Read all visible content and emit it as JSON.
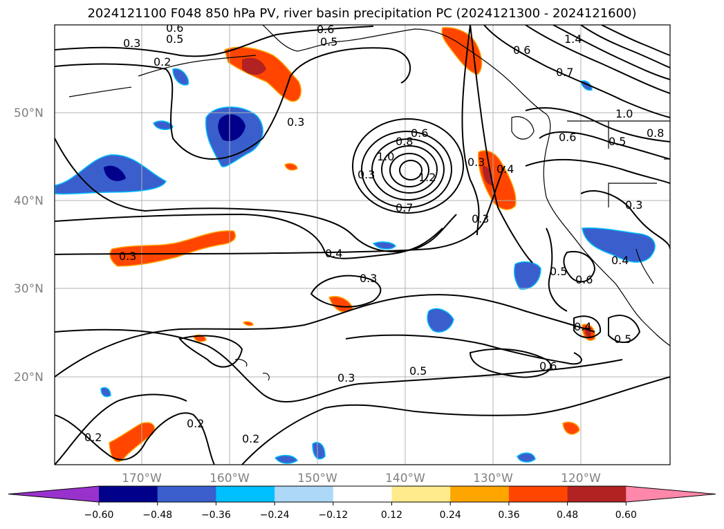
{
  "title": "2024121100 F048 850 hPa PV, river basin precipitation PC (2024121300 - 2024121600)",
  "lat_labels": [
    "50°N",
    "40°N",
    "30°N",
    "20°N"
  ],
  "lon_labels": [
    "170°W",
    "160°W",
    "150°W",
    "140°W",
    "130°W",
    "120°W"
  ],
  "contour_labels": [
    "0.6",
    "0.6",
    "0.5",
    "0.5",
    "0.3",
    "0.2",
    "1.4",
    "0.6",
    "0.7",
    "0.3",
    "1.0",
    "0.8",
    "0.6",
    "1.0",
    "1.2",
    "0.3",
    "0.3",
    "0.4",
    "0.6",
    "0.5",
    "0.8",
    "0.7",
    "0.3",
    "0.3",
    "0.4",
    "0.3",
    "0.4",
    "0.5",
    "0.6",
    "0.3",
    "0.4",
    "0.5",
    "0.3",
    "0.5",
    "0.6",
    "0.2",
    "0.2",
    "0.2"
  ],
  "colorbar": {
    "ticks": [
      "−0.60",
      "−0.48",
      "−0.36",
      "−0.24",
      "−0.12",
      "0.12",
      "0.24",
      "0.36",
      "0.48",
      "0.60"
    ],
    "colors": [
      "#9932cc",
      "#00008b",
      "#3a5fcd",
      "#00bfff",
      "#add8f7",
      "#ffffff",
      "#ffeb8c",
      "#ffa500",
      "#ff4500",
      "#b22222",
      "#ff88aa"
    ]
  },
  "colors": {
    "neg_strong": "#00008b",
    "neg_mid": "#3a5fcd",
    "neg_light": "#00bfff",
    "pos_light": "#ffa500",
    "pos_mid": "#ff4500",
    "pos_strong": "#b22222"
  }
}
